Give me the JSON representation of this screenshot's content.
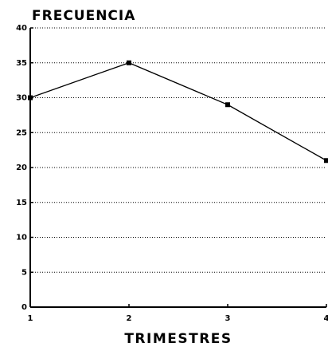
{
  "chart_data": {
    "type": "line",
    "title": "FRECUENCIA",
    "xlabel": "TRIMESTRES",
    "x": [
      1,
      2,
      3,
      4
    ],
    "values": [
      30,
      35,
      29,
      21
    ],
    "color": "#000000",
    "xlim": [
      1,
      4
    ],
    "xticks": [
      1,
      2,
      3,
      4
    ],
    "ylim": [
      0,
      40
    ],
    "yticks": [
      0,
      5,
      10,
      15,
      20,
      25,
      30,
      35,
      40
    ],
    "grid": true
  }
}
